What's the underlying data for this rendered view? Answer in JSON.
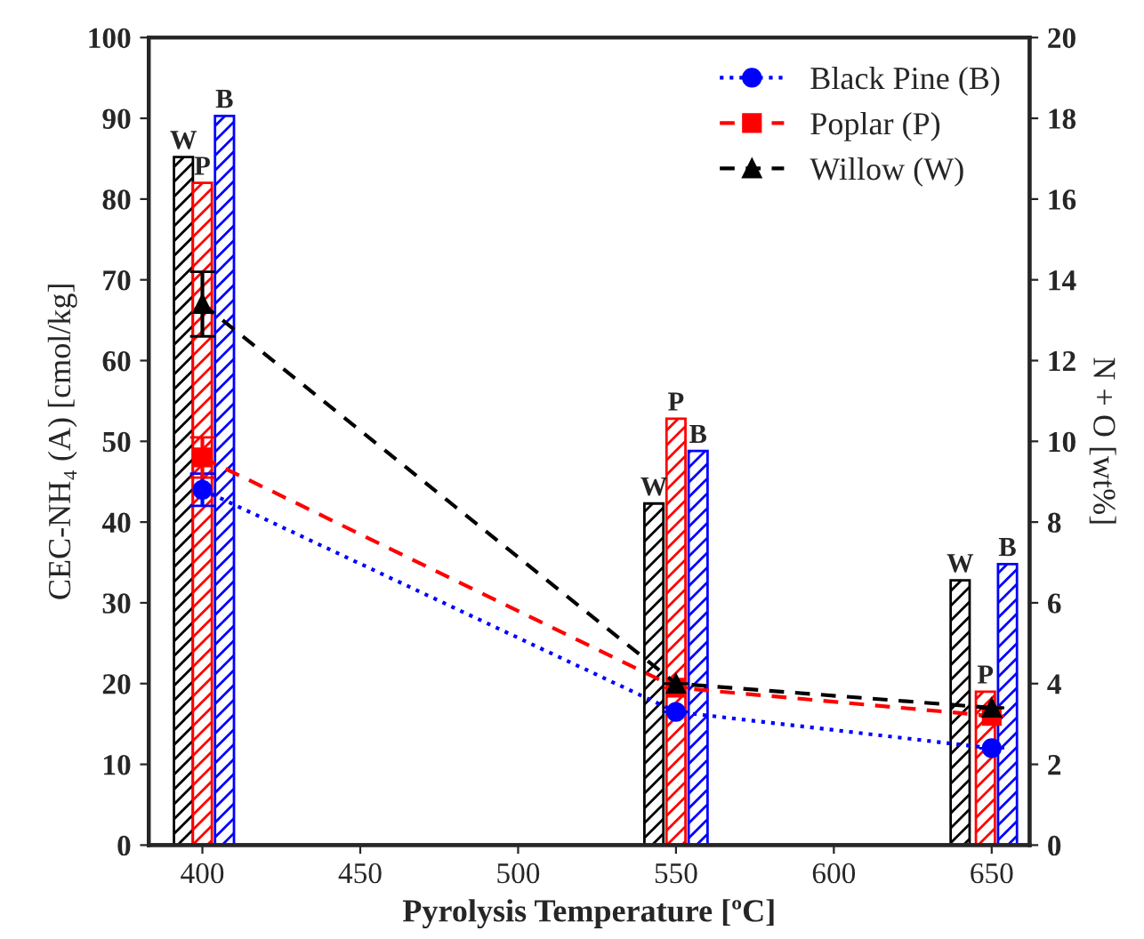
{
  "chart_data": {
    "type": "bar",
    "xlabel": "Pyrolysis Temperature [ºC]",
    "ylabel": "CEC-NH₄ (A) [cmol/kg]",
    "y2label": "N + O [wt%]",
    "xlim": [
      383,
      662
    ],
    "xticks": [
      400,
      450,
      500,
      550,
      600,
      650
    ],
    "ylim": [
      0,
      100
    ],
    "yticks": [
      0,
      10,
      20,
      30,
      40,
      50,
      60,
      70,
      80,
      90,
      100
    ],
    "y2lim": [
      0,
      20
    ],
    "y2ticks": [
      0,
      2,
      4,
      6,
      8,
      10,
      12,
      14,
      16,
      18,
      20
    ],
    "grid": false,
    "legend": "top right",
    "series": [
      {
        "color": "#000000",
        "x": [
          394,
          543,
          640
        ],
        "values": [
          85.2,
          42.3,
          32.8
        ]
      },
      {
        "color": "#ff0000",
        "x": [
          400,
          550,
          648
        ],
        "values": [
          82,
          52.8,
          19
        ]
      },
      {
        "color": "#0000ff",
        "x": [
          407,
          557,
          655
        ],
        "values": [
          90.3,
          48.8,
          34.8
        ]
      },
      {
        "type": "line",
        "axis": "y2",
        "name": "Black Pine (B)",
        "color": "#0000ff",
        "marker": "circle",
        "line_style": "dotted",
        "x": [
          400,
          550,
          650
        ],
        "values": [
          8.8,
          3.3,
          2.4
        ],
        "errors": [
          0.4,
          null,
          null
        ]
      },
      {
        "type": "line",
        "axis": "y2",
        "name": "Poplar (P)",
        "color": "#ff0000",
        "marker": "square",
        "line_style": "dashed",
        "x": [
          400,
          550,
          650
        ],
        "values": [
          9.6,
          3.9,
          3.2
        ],
        "errors": [
          0.5,
          null,
          null
        ]
      },
      {
        "type": "line",
        "axis": "y2",
        "name": "Willow (W)",
        "color": "#000000",
        "marker": "triangle",
        "line_style": "dashed",
        "x": [
          400,
          550,
          650
        ],
        "values": [
          13.4,
          4.0,
          3.4
        ],
        "errors": [
          0.8,
          null,
          null
        ]
      }
    ],
    "annotations": [
      {
        "text": "W",
        "x": 394,
        "y": 85.2
      },
      {
        "text": "P",
        "x": 400,
        "y": 82
      },
      {
        "text": "B",
        "x": 407,
        "y": 90.3
      },
      {
        "text": "W",
        "x": 543,
        "y": 42.3
      },
      {
        "text": "P",
        "x": 550,
        "y": 52.8
      },
      {
        "text": "B",
        "x": 557,
        "y": 48.8
      },
      {
        "text": "W",
        "x": 640,
        "y": 32.8
      },
      {
        "text": "P",
        "x": 648,
        "y": 19
      },
      {
        "text": "B",
        "x": 655,
        "y": 34.8
      }
    ]
  }
}
